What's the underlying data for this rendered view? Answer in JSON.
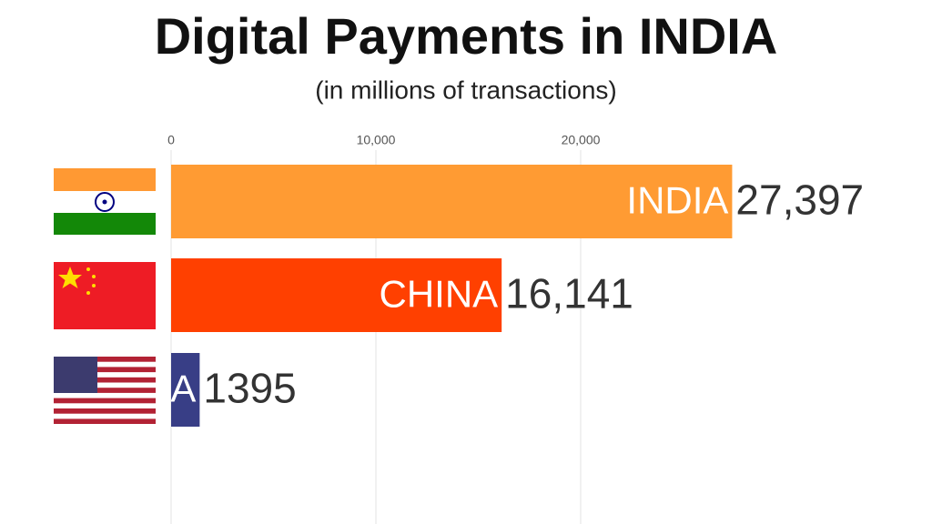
{
  "chart_data": {
    "type": "bar",
    "orientation": "horizontal",
    "title": "Digital Payments in INDIA",
    "subtitle": "(in millions of transactions)",
    "categories": [
      "INDIA",
      "CHINA",
      "A"
    ],
    "values": [
      27397,
      16141,
      1395
    ],
    "value_labels": [
      "27,397",
      "16,141",
      "1395"
    ],
    "colors": [
      "#ff9b33",
      "#ff4000",
      "#383e86"
    ],
    "xlim": [
      0,
      30000
    ],
    "xticks": [
      0,
      {
        "value": 10000,
        "label": "10,000"
      },
      {
        "value": 20000,
        "label": "20,000"
      }
    ],
    "grid": true
  }
}
